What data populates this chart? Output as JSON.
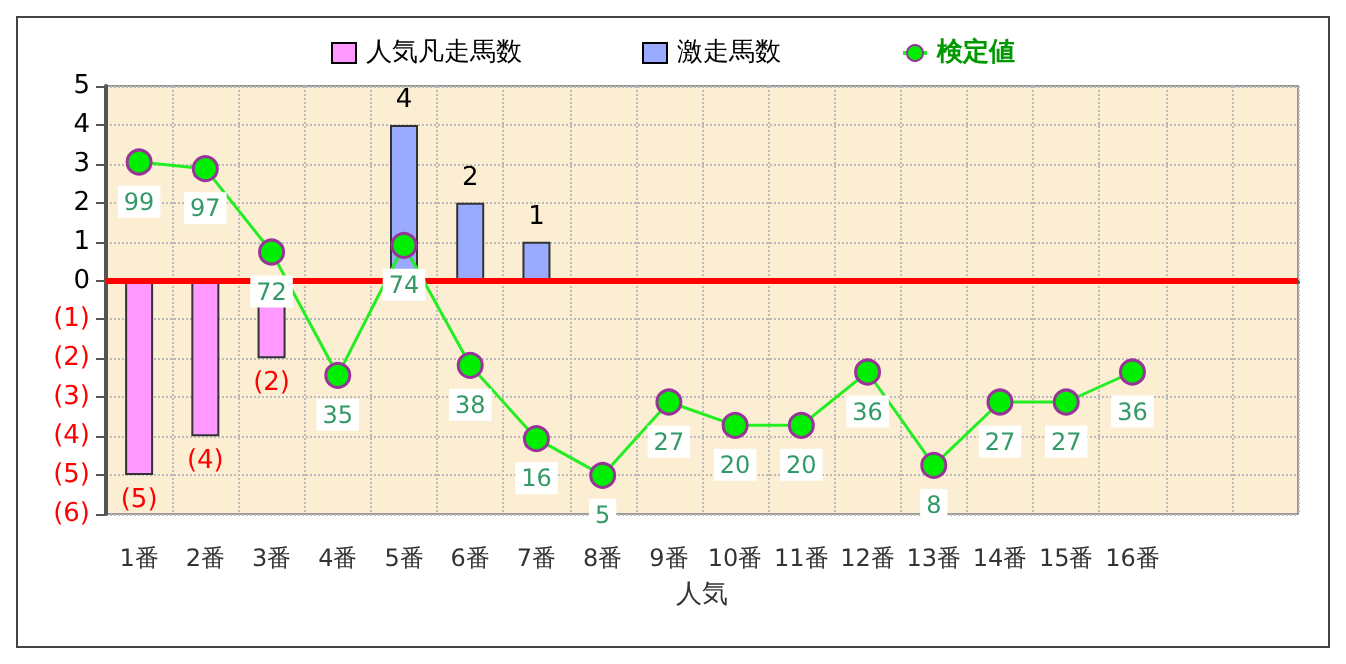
{
  "chart_data": {
    "type": "bar",
    "xlabel": "人気",
    "categories": [
      "1番",
      "2番",
      "3番",
      "4番",
      "5番",
      "6番",
      "7番",
      "8番",
      "9番",
      "10番",
      "11番",
      "12番",
      "13番",
      "14番",
      "15番",
      "16番",
      null,
      null
    ],
    "series": [
      {
        "name": "人気凡走馬数",
        "color": "#ff99ff",
        "values": [
          -5,
          -4,
          -2,
          null,
          null,
          null,
          null,
          null,
          null,
          null,
          null,
          null,
          null,
          null,
          null,
          null,
          null,
          null
        ],
        "value_labels": [
          "(5)",
          "(4)",
          "(2)",
          null,
          null,
          null,
          null,
          null,
          null,
          null,
          null,
          null,
          null,
          null,
          null,
          null,
          null,
          null
        ]
      },
      {
        "name": "激走馬数",
        "color": "#99aaff",
        "values": [
          null,
          null,
          null,
          null,
          4,
          2,
          1,
          null,
          null,
          null,
          null,
          null,
          null,
          null,
          null,
          null,
          null,
          null
        ],
        "value_labels": [
          null,
          null,
          null,
          null,
          "4",
          "2",
          "1",
          null,
          null,
          null,
          null,
          null,
          null,
          null,
          null,
          null,
          null,
          null
        ]
      },
      {
        "name": "検定値",
        "type": "line",
        "axis": "y2",
        "color": "#22ee22",
        "marker": "circle",
        "values": [
          99,
          97,
          72,
          35,
          74,
          38,
          16,
          5,
          27,
          20,
          20,
          36,
          8,
          27,
          27,
          36,
          null,
          null
        ],
        "value_labels": [
          "99",
          "97",
          "72",
          "35",
          "74",
          "38",
          "16",
          "5",
          "27",
          "20",
          "20",
          "36",
          "8",
          "27",
          "27",
          "36",
          null,
          null
        ]
      }
    ],
    "ylim": [
      -6,
      5
    ],
    "yticks": [
      {
        "value": -6,
        "label": "(6)"
      },
      {
        "value": -5,
        "label": "(5)"
      },
      {
        "value": -4,
        "label": "(4)"
      },
      {
        "value": -3,
        "label": "(3)"
      },
      {
        "value": -2,
        "label": "(2)"
      },
      {
        "value": -1,
        "label": "(1)"
      },
      0,
      1,
      2,
      3,
      4,
      5
    ],
    "y2lim": [
      -6.6,
      121.8
    ],
    "ref_lines": [
      {
        "axis": "y",
        "value": 0,
        "color": "#ff0000"
      }
    ],
    "grid": true,
    "legend": "top"
  }
}
